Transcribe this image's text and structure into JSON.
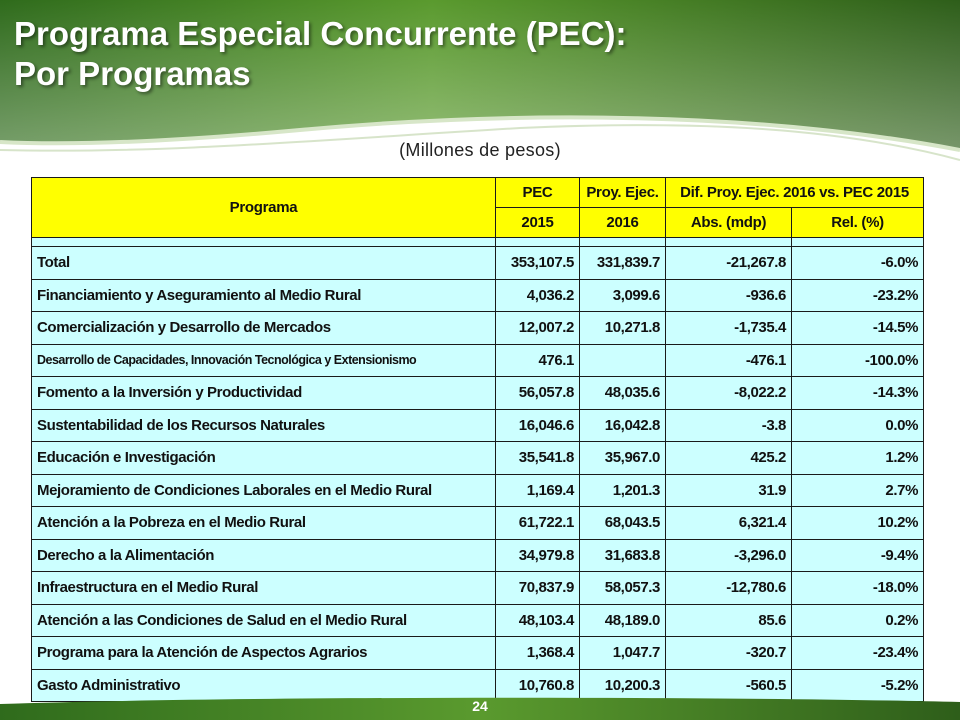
{
  "header": {
    "title_line1": "Programa Especial Concurrente (PEC):",
    "title_line2": "Por Programas",
    "subtitle": "(Millones de pesos)"
  },
  "colors": {
    "banner_green": "#4e8a2a",
    "header_yellow": "#ffff00",
    "row_cyan": "#ccffff"
  },
  "table": {
    "headers": {
      "programa": "Programa",
      "pec": "PEC",
      "pec_year": "2015",
      "proy": "Proy. Ejec.",
      "proy_year": "2016",
      "dif": "Dif. Proy. Ejec. 2016 vs. PEC 2015",
      "abs": "Abs. (mdp)",
      "rel": "Rel. (%)"
    },
    "rows": [
      {
        "programa": "Total",
        "pec": "353,107.5",
        "proy": "331,839.7",
        "abs": "-21,267.8",
        "rel": "-6.0%"
      },
      {
        "programa": "Financiamiento y Aseguramiento al Medio Rural",
        "pec": "4,036.2",
        "proy": "3,099.6",
        "abs": "-936.6",
        "rel": "-23.2%"
      },
      {
        "programa": "Comercialización y Desarrollo de Mercados",
        "pec": "12,007.2",
        "proy": "10,271.8",
        "abs": "-1,735.4",
        "rel": "-14.5%"
      },
      {
        "programa": "Desarrollo de Capacidades, Innovación Tecnológica y Extensionismo",
        "pec": "476.1",
        "proy": "",
        "abs": "-476.1",
        "rel": "-100.0%"
      },
      {
        "programa": "Fomento a la Inversión y Productividad",
        "pec": "56,057.8",
        "proy": "48,035.6",
        "abs": "-8,022.2",
        "rel": "-14.3%"
      },
      {
        "programa": "Sustentabilidad de los Recursos Naturales",
        "pec": "16,046.6",
        "proy": "16,042.8",
        "abs": "-3.8",
        "rel": "0.0%"
      },
      {
        "programa": "Educación e Investigación",
        "pec": "35,541.8",
        "proy": "35,967.0",
        "abs": "425.2",
        "rel": "1.2%"
      },
      {
        "programa": "Mejoramiento de Condiciones Laborales en el Medio Rural",
        "pec": "1,169.4",
        "proy": "1,201.3",
        "abs": "31.9",
        "rel": "2.7%"
      },
      {
        "programa": "Atención a la Pobreza en el Medio Rural",
        "pec": "61,722.1",
        "proy": "68,043.5",
        "abs": "6,321.4",
        "rel": "10.2%"
      },
      {
        "programa": "Derecho a la Alimentación",
        "pec": "34,979.8",
        "proy": "31,683.8",
        "abs": "-3,296.0",
        "rel": "-9.4%"
      },
      {
        "programa": "Infraestructura en el Medio Rural",
        "pec": "70,837.9",
        "proy": "58,057.3",
        "abs": "-12,780.6",
        "rel": "-18.0%"
      },
      {
        "programa": "Atención a las Condiciones de Salud en el Medio Rural",
        "pec": "48,103.4",
        "proy": "48,189.0",
        "abs": "85.6",
        "rel": "0.2%"
      },
      {
        "programa": "Programa para la Atención de Aspectos Agrarios",
        "pec": "1,368.4",
        "proy": "1,047.7",
        "abs": "-320.7",
        "rel": "-23.4%"
      },
      {
        "programa": "Gasto Administrativo",
        "pec": "10,760.8",
        "proy": "10,200.3",
        "abs": "-560.5",
        "rel": "-5.2%"
      }
    ]
  },
  "footer": {
    "page_number": "24"
  }
}
